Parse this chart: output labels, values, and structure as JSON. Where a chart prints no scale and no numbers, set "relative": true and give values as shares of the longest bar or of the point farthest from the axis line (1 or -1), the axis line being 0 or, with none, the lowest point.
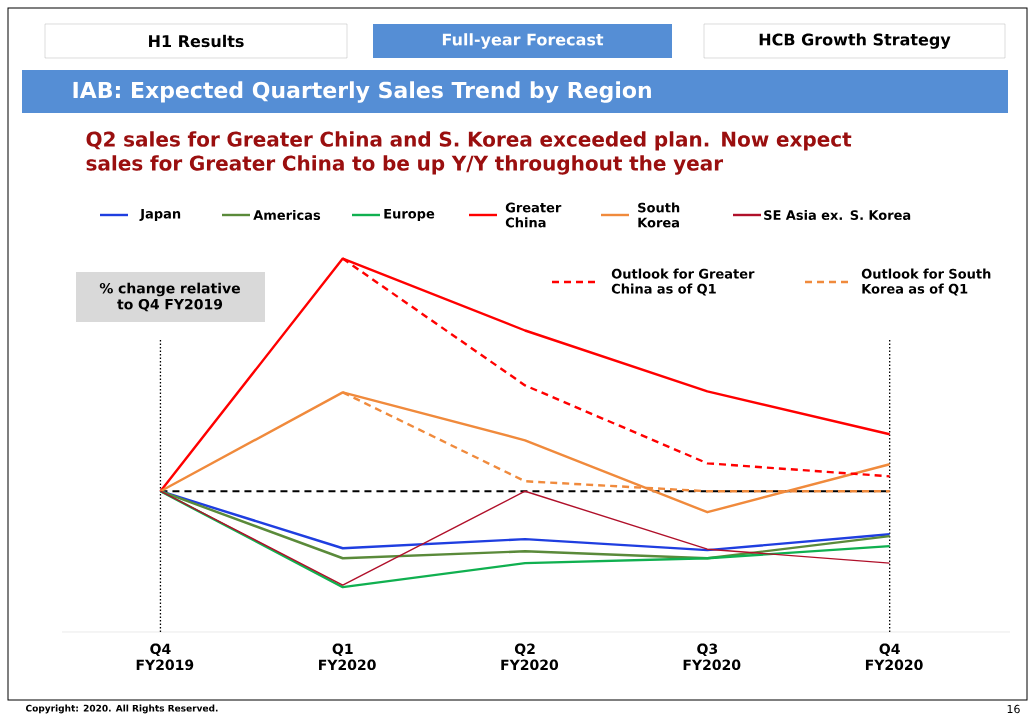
{
  "chart_data": {
    "type": "line",
    "title": "IAB: Expected Quarterly Sales Trend by Region",
    "subtitle": "Q2 sales for Greater China and S. Korea exceeded plan. Now expect sales for Greater China to be up Y/Y throughout the year",
    "categories": [
      "Q4 FY2019",
      "Q1 FY2020",
      "Q2 FY2020",
      "Q3 FY2020",
      "Q4 FY2020"
    ],
    "relative": true,
    "legend": "top",
    "tick_labels": "x",
    "marker": "none",
    "series": [
      {
        "name": "Japan",
        "color": "#1f3ee0",
        "values": [
          0,
          -0.245,
          -0.206,
          -0.253,
          -0.185
        ]
      },
      {
        "name": "Americas",
        "color": "#5a8a3a",
        "values": [
          0,
          -0.288,
          -0.258,
          -0.288,
          -0.193
        ]
      },
      {
        "name": "Europe",
        "color": "#10b050",
        "values": [
          0,
          -0.412,
          -0.309,
          -0.288,
          -0.236
        ]
      },
      {
        "name": "Greater China",
        "color": "#ff0000",
        "values": [
          0,
          1,
          0.691,
          0.429,
          0.245
        ]
      },
      {
        "name": "South Korea",
        "color": "#f08a3c",
        "values": [
          0,
          0.425,
          0.219,
          -0.09,
          0.116
        ]
      },
      {
        "name": "SE Asia ex. S. Korea",
        "color": "#b0102a",
        "values": [
          0,
          -0.403,
          0,
          -0.249,
          -0.309
        ]
      },
      {
        "name": "Outlook for Greater China as of Q1",
        "color": "#ff0000",
        "line_style": "dashed",
        "values": [
          null,
          1,
          0.455,
          0.12,
          0.064
        ]
      },
      {
        "name": "Outlook for South Korea as of Q1",
        "color": "#f08a3c",
        "line_style": "dashed",
        "values": [
          null,
          0.425,
          0.043,
          0,
          0
        ]
      }
    ],
    "ref_lines": [
      {
        "axis": "y",
        "value": 0,
        "color": "#000000",
        "line_style": "dashed"
      },
      {
        "axis": "x",
        "value": "Q4 FY2019",
        "color": "#000000",
        "line_style": "dotted"
      },
      {
        "axis": "x",
        "value": "Q4 FY2020",
        "color": "#000000",
        "line_style": "dotted"
      }
    ],
    "annotations": [
      "H1 Results",
      "Full-year Forecast",
      "HCB Growth Strategy",
      "% change relative to Q4 FY2019",
      "Copyright: 2020. All Rights Reserved.",
      "16"
    ]
  }
}
